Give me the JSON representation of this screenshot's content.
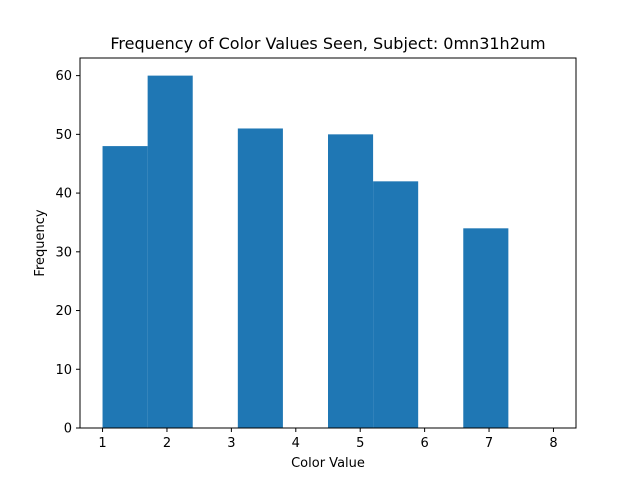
{
  "chart_data": {
    "type": "bar",
    "title": "Frequency of Color Values Seen, Subject: 0mn31h2um",
    "xlabel": "Color Value",
    "ylabel": "Frequency",
    "xlim": [
      0.65,
      8.35
    ],
    "ylim": [
      0,
      63
    ],
    "x_ticks": [
      1,
      2,
      3,
      4,
      5,
      6,
      7,
      8
    ],
    "y_ticks": [
      0,
      10,
      20,
      30,
      40,
      50,
      60
    ],
    "bins": [
      {
        "start": 1.0,
        "end": 1.7,
        "value": 48
      },
      {
        "start": 1.7,
        "end": 2.4,
        "value": 60
      },
      {
        "start": 2.4,
        "end": 3.1,
        "value": 0
      },
      {
        "start": 3.1,
        "end": 3.8,
        "value": 51
      },
      {
        "start": 3.8,
        "end": 4.5,
        "value": 0
      },
      {
        "start": 4.5,
        "end": 5.2,
        "value": 50
      },
      {
        "start": 5.2,
        "end": 5.9,
        "value": 42
      },
      {
        "start": 5.9,
        "end": 6.6,
        "value": 0
      },
      {
        "start": 6.6,
        "end": 7.3,
        "value": 34
      },
      {
        "start": 7.3,
        "end": 8.0,
        "value": 0
      }
    ],
    "bar_color": "#1f77b4",
    "grid": false,
    "legend": "none"
  }
}
